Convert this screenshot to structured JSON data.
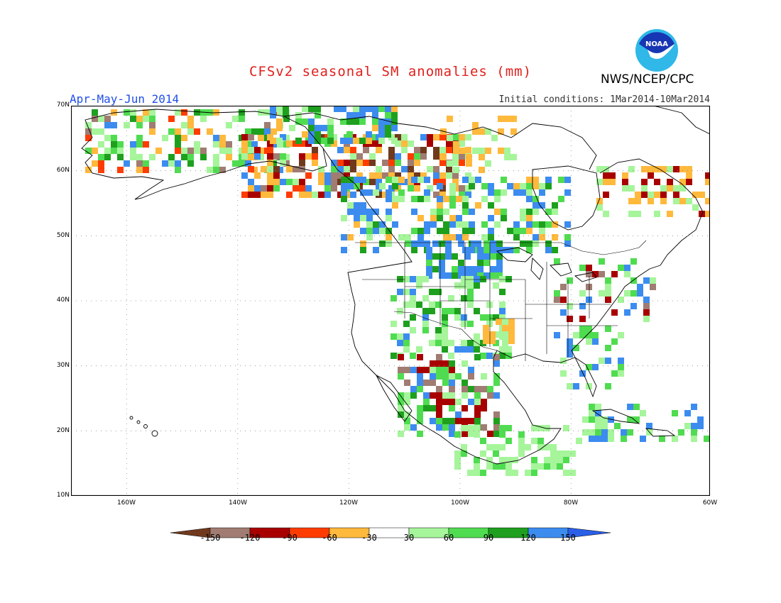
{
  "header": {
    "title": "CFSv2 seasonal SM anomalies (mm)",
    "period": "Apr-May-Jun 2014",
    "initial_conditions": "Initial conditions: 1Mar2014-10Mar2014",
    "agency": "NWS/NCEP/CPC",
    "logo_text": "NOAA",
    "logo_icon": "noaa-logo-icon"
  },
  "map": {
    "lon_range": [
      -175,
      -60
    ],
    "lat_range": [
      10,
      70
    ],
    "lat_labels": [
      "70N",
      "60N",
      "50N",
      "40N",
      "30N",
      "20N",
      "10N"
    ],
    "lon_labels": [
      "160W",
      "140W",
      "120W",
      "100W",
      "80W",
      "60W"
    ]
  },
  "legend": {
    "labels": [
      "-150",
      "-120",
      "-90",
      "-60",
      "-30",
      "30",
      "60",
      "90",
      "120",
      "150"
    ],
    "colors": [
      "#70391d",
      "#a07c72",
      "#a80000",
      "#ff3c00",
      "#ffb93c",
      "#ffffff",
      "#a6f59b",
      "#50dc50",
      "#1ea01e",
      "#3c8cf0",
      "#2a5fe8"
    ]
  }
}
